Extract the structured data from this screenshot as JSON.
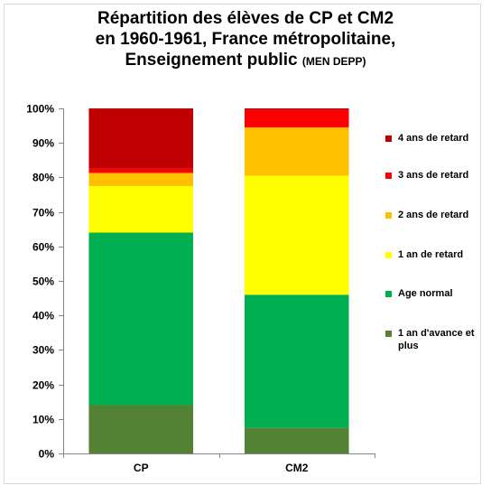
{
  "title": {
    "line1": "Répartition des élèves de CP et CM2",
    "line2": "en 1960-1961, France métropolitaine,",
    "line3": "Enseignement public",
    "source": "(MEN DEPP)"
  },
  "chart_data": {
    "type": "bar",
    "stacked": "percent",
    "categories": [
      "CP",
      "CM2"
    ],
    "yticks": [
      "0%",
      "10%",
      "20%",
      "30%",
      "40%",
      "50%",
      "60%",
      "70%",
      "80%",
      "90%",
      "100%"
    ],
    "ylim": [
      0,
      100
    ],
    "grid": false,
    "legend_position": "right",
    "series": [
      {
        "name": "1 an d'avance et plus",
        "color": "#548235",
        "values": [
          14,
          7.5
        ]
      },
      {
        "name": "Age normal",
        "color": "#00b050",
        "values": [
          50,
          38.5
        ]
      },
      {
        "name": "1 an de retard",
        "color": "#ffff00",
        "values": [
          13.5,
          34.5
        ]
      },
      {
        "name": "2 ans de retard",
        "color": "#ffc000",
        "values": [
          3.8,
          14
        ]
      },
      {
        "name": "3 ans de retard",
        "color": "#ff0000",
        "values": [
          1.2,
          5
        ]
      },
      {
        "name": "4 ans de retard",
        "color": "#c00000",
        "values": [
          17.5,
          0.5
        ]
      }
    ],
    "legend_order": [
      5,
      4,
      3,
      2,
      1,
      0
    ]
  }
}
